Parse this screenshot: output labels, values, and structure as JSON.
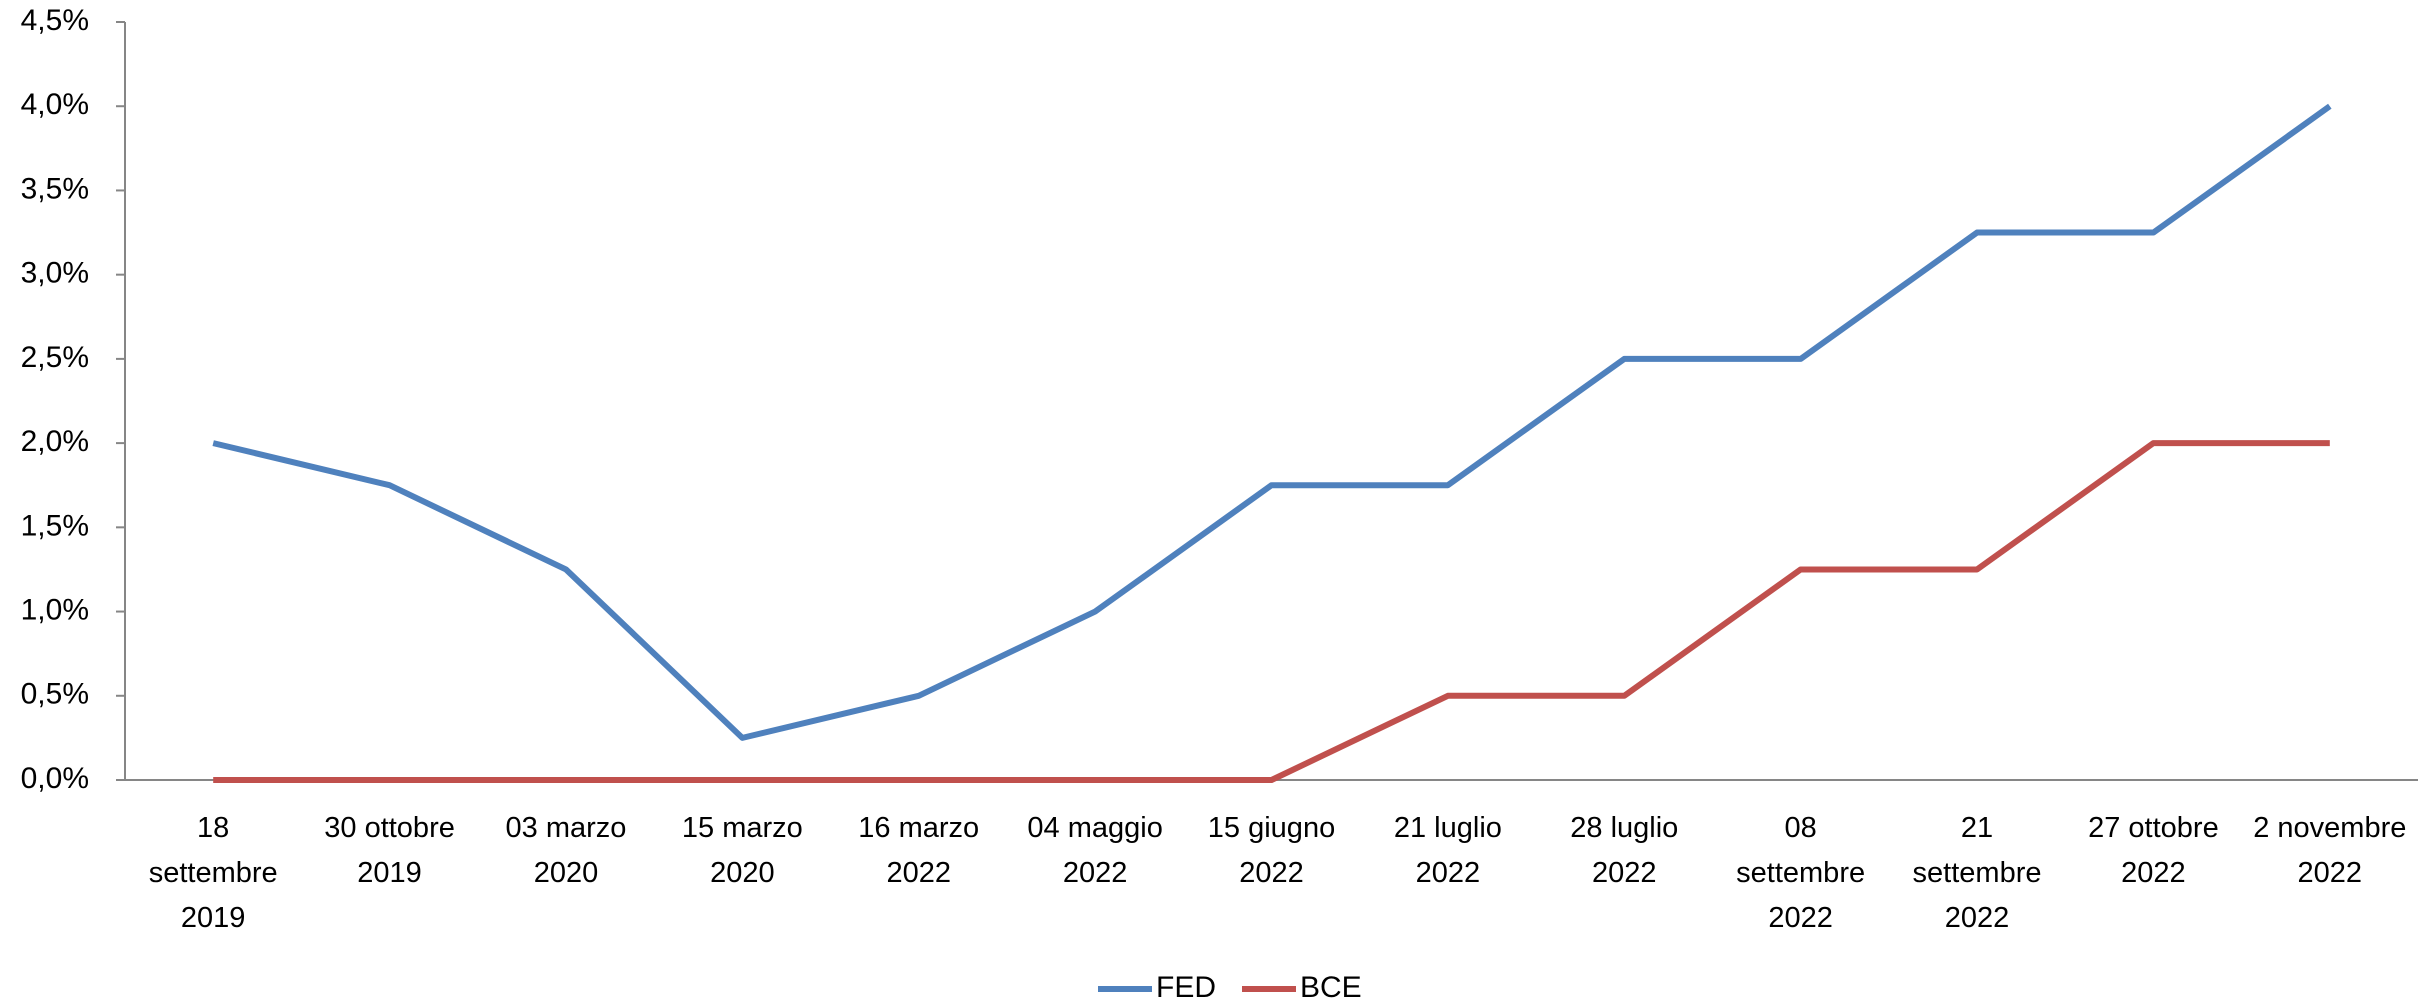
{
  "chart_data": {
    "type": "line",
    "categories": [
      "18 settembre 2019",
      "30 ottobre 2019",
      "03 marzo 2020",
      "15 marzo 2020",
      "16 marzo 2022",
      "04 maggio 2022",
      "15 giugno 2022",
      "21 luglio 2022",
      "28 luglio 2022",
      "08 settembre 2022",
      "21 settembre 2022",
      "27 ottobre 2022",
      "2 novembre 2022"
    ],
    "series": [
      {
        "name": "FED",
        "color": "#4f81bd",
        "values": [
          2,
          1.75,
          1.25,
          0.25,
          0.5,
          1,
          1.75,
          1.75,
          2.5,
          2.5,
          3.25,
          3.25,
          4
        ]
      },
      {
        "name": "BCE",
        "color": "#c0504d",
        "values": [
          0,
          0,
          0,
          0,
          0,
          0,
          0,
          0.5,
          0.5,
          1.25,
          1.25,
          2,
          2
        ]
      }
    ],
    "ylim": [
      0,
      4.5
    ],
    "yticks": [
      {
        "value": 0,
        "label": "0,0%"
      },
      {
        "value": 0.5,
        "label": "0,5%"
      },
      {
        "value": 1,
        "label": "1,0%"
      },
      {
        "value": 1.5,
        "label": "1,5%"
      },
      {
        "value": 2,
        "label": "2,0%"
      },
      {
        "value": 2.5,
        "label": "2,5%"
      },
      {
        "value": 3,
        "label": "3,0%"
      },
      {
        "value": 3.5,
        "label": "3,5%"
      },
      {
        "value": 4,
        "label": "4,0%"
      },
      {
        "value": 4.5,
        "label": "4,5%"
      }
    ],
    "grid": false,
    "legend": "bottom"
  }
}
